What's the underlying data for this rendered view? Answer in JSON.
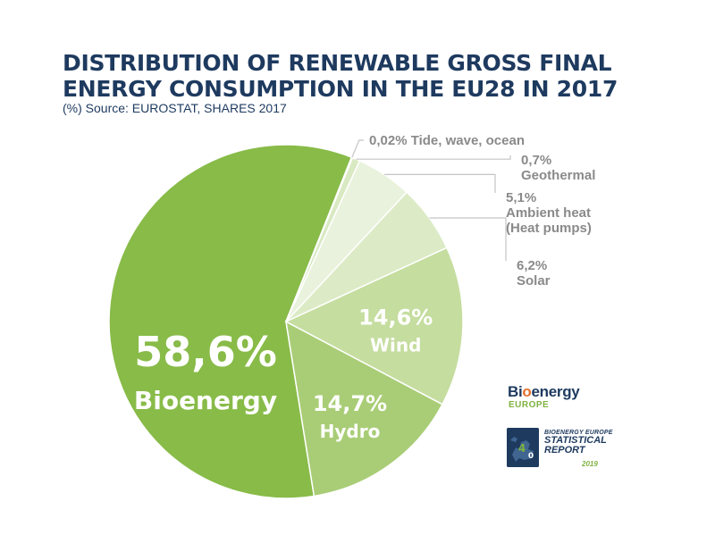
{
  "header": {
    "title_line1": "DISTRIBUTION OF RENEWABLE GROSS FINAL",
    "title_line2": "ENERGY CONSUMPTION IN THE EU28 IN 2017",
    "subtitle": "(%) Source: EUROSTAT, SHARES 2017"
  },
  "chart_data": {
    "type": "pie",
    "title": "DISTRIBUTION OF RENEWABLE GROSS FINAL ENERGY CONSUMPTION IN THE EU28 IN 2017",
    "subtitle": "(%) Source: EUROSTAT, SHARES 2017",
    "slices": [
      {
        "label": "Bioenergy",
        "value": 58.6,
        "value_label": "58,6%",
        "color": "#88bb48",
        "label_inside": true
      },
      {
        "label": "Hydro",
        "value": 14.7,
        "value_label": "14,7%",
        "color": "#a9cd76",
        "label_inside": true
      },
      {
        "label": "Wind",
        "value": 14.6,
        "value_label": "14,6%",
        "color": "#c5dd9f",
        "label_inside": true
      },
      {
        "label": "Solar",
        "value": 6.2,
        "value_label": "6,2%",
        "color": "#dcebc6",
        "label_inside": false
      },
      {
        "label": "Ambient heat (Heat pumps)",
        "value": 5.1,
        "value_label": "5,1%",
        "label_lines": [
          "Ambient heat",
          "(Heat pumps)"
        ],
        "color": "#e9f2dc",
        "label_inside": false
      },
      {
        "label": "Geothermal",
        "value": 0.7,
        "value_label": "0,7%",
        "color": "#d9e9c2",
        "label_inside": false
      },
      {
        "label": "Tide, wave, ocean",
        "value": 0.02,
        "value_label": "0,02%",
        "color": "#c9df9f",
        "label_inside": false
      }
    ]
  },
  "branding": {
    "logo_part1": "Bi",
    "logo_part2": "o",
    "logo_part3": "energy",
    "logo_sub": "EUROPE",
    "report_line1": "BIOENERGY EUROPE",
    "report_line2": "STATISTICAL",
    "report_line3": "REPORT",
    "report_year": "2019",
    "accent_color": "#7fb241",
    "navy_color": "#1e3a5f"
  }
}
